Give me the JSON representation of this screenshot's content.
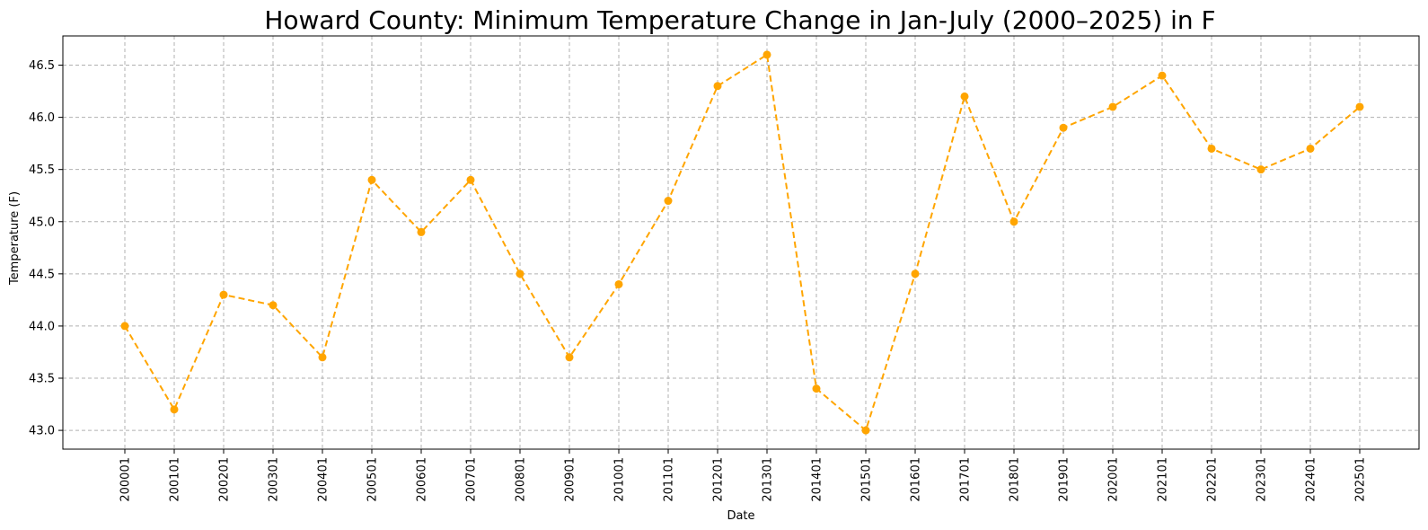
{
  "chart_data": {
    "type": "line",
    "title": "Howard County: Minimum Temperature Change in Jan-July (2000–2025) in F",
    "xlabel": "Date",
    "ylabel": "Temperature (F)",
    "categories": [
      "200001",
      "200101",
      "200201",
      "200301",
      "200401",
      "200501",
      "200601",
      "200701",
      "200801",
      "200901",
      "201001",
      "201101",
      "201201",
      "201301",
      "201401",
      "201501",
      "201601",
      "201701",
      "201801",
      "201901",
      "202001",
      "202101",
      "202201",
      "202301",
      "202401",
      "202501"
    ],
    "series": [
      {
        "values": [
          44.0,
          43.2,
          44.3,
          44.2,
          43.7,
          45.4,
          44.9,
          45.4,
          44.5,
          43.7,
          44.4,
          45.2,
          46.3,
          46.6,
          43.4,
          43.0,
          44.5,
          46.2,
          45.0,
          45.9,
          46.1,
          46.4,
          45.7,
          45.5,
          45.7,
          46.1
        ],
        "color": "#FFA500",
        "line_style": "dashed",
        "marker": "circle"
      }
    ],
    "ylim": [
      42.82,
      46.78
    ],
    "yticks": [
      "43.0",
      "43.5",
      "44.0",
      "44.5",
      "45.0",
      "45.5",
      "46.0",
      "46.5"
    ],
    "grid": true,
    "legend": false
  }
}
